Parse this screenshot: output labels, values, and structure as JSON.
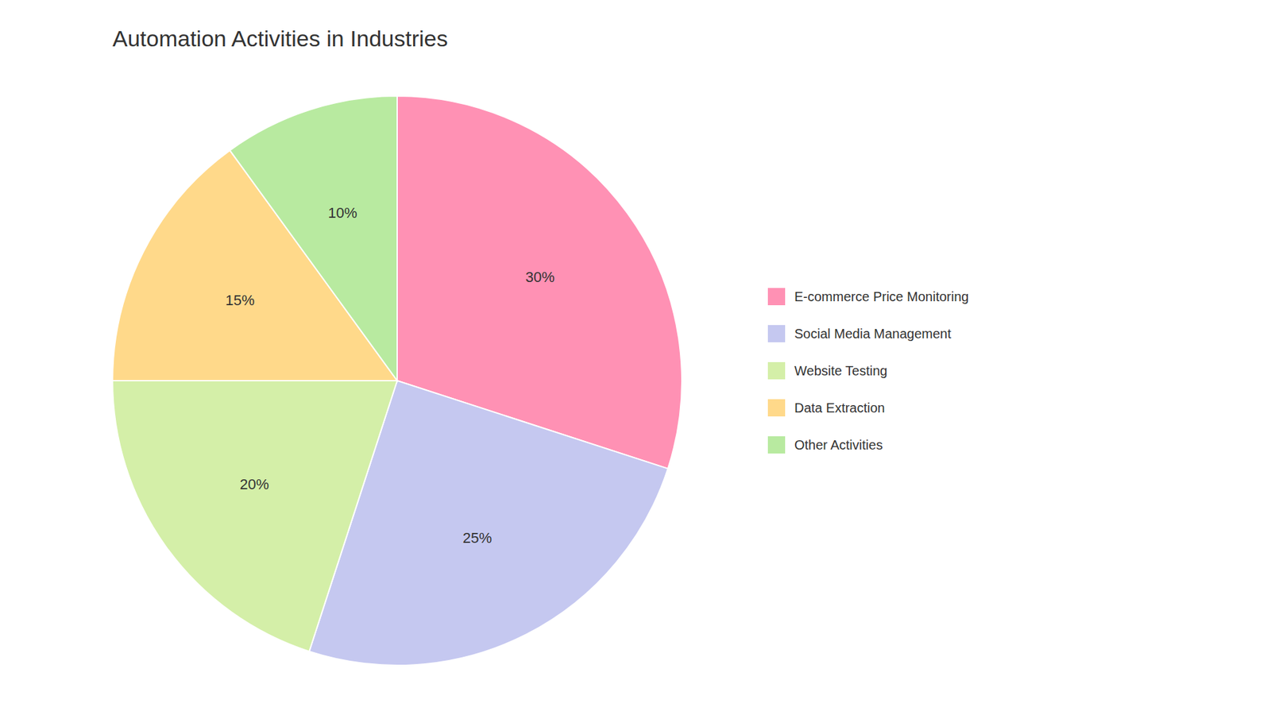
{
  "chart_data": {
    "type": "pie",
    "title": "Automation Activities in Industries",
    "categories": [
      "E-commerce Price Monitoring",
      "Social Media Management",
      "Website Testing",
      "Data Extraction",
      "Other Activities"
    ],
    "values": [
      30,
      25,
      20,
      15,
      10
    ],
    "value_labels": [
      "30%",
      "25%",
      "20%",
      "15%",
      "10%"
    ],
    "colors": [
      "#FF91B4",
      "#C5C8F0",
      "#D4EFA8",
      "#FFD98A",
      "#B8EAA0"
    ],
    "data_labels": true,
    "legend": "right"
  }
}
